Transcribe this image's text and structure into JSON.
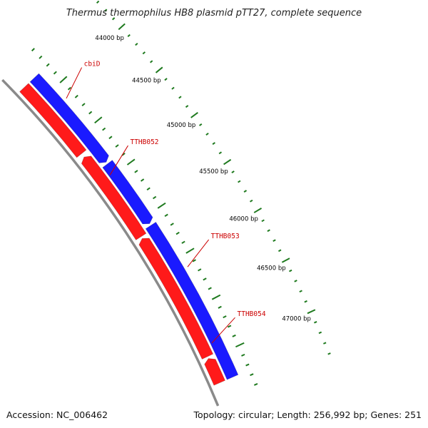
{
  "title": "Thermus thermophilus HB8 plasmid pTT27, complete sequence",
  "accession_text": "Accession: NC_006462",
  "summary_text": "Topology: circular; Length: 256,992 bp; Genes: 251",
  "colors": {
    "forward_strand": "#1a1aff",
    "reverse_strand": "#ff1a1a",
    "backbone": "#8a8a8a",
    "tick": "#1f7a1f",
    "gene_label": "#cc0000"
  },
  "chart_data": {
    "type": "genome-map",
    "topology": "circular",
    "length_bp": 256992,
    "gene_count": 251,
    "visible_range_bp": [
      43800,
      47250
    ],
    "major_ticks": [
      {
        "position": 44000,
        "label": "44000 bp"
      },
      {
        "position": 44500,
        "label": "44500 bp"
      },
      {
        "position": 45000,
        "label": "45000 bp"
      },
      {
        "position": 45500,
        "label": "45500 bp"
      },
      {
        "position": 46000,
        "label": "46000 bp"
      },
      {
        "position": 46500,
        "label": "46500 bp"
      },
      {
        "position": 47000,
        "label": "47000 bp"
      }
    ],
    "minor_tick_interval_bp": 100,
    "genes": [
      {
        "name": "cbiD",
        "strand": "forward",
        "start": 43800,
        "end": 44860,
        "label_at": 44150
      },
      {
        "name": "",
        "strand": "reverse",
        "start": 43800,
        "end": 44650
      },
      {
        "name": "TTHB052",
        "strand": "reverse",
        "start": 44690,
        "end": 45640,
        "label_at": 44980
      },
      {
        "name": "",
        "strand": "forward",
        "start": 44880,
        "end": 45580
      },
      {
        "name": "TTHB053",
        "strand": "forward",
        "start": 45600,
        "end": 47250,
        "label_at": 46120
      },
      {
        "name": "",
        "strand": "reverse",
        "start": 45660,
        "end": 46970
      },
      {
        "name": "TTHB054",
        "strand": "reverse",
        "start": 46990,
        "end": 47250,
        "label_at": 46870
      }
    ]
  }
}
